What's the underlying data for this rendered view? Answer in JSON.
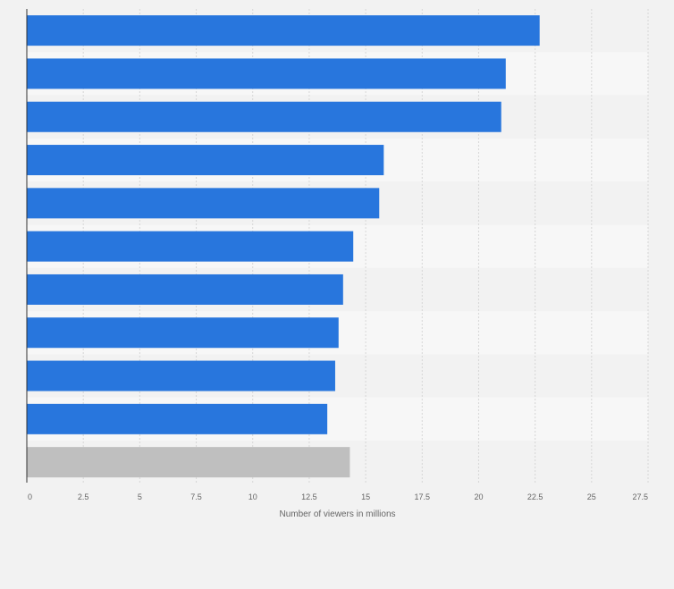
{
  "chart_data": {
    "type": "bar",
    "orientation": "horizontal",
    "title": "",
    "xlabel": "Number of viewers in millions",
    "ylabel": "",
    "xlim": [
      0,
      27.5
    ],
    "xticks": [
      "0",
      "2.5",
      "5",
      "7.5",
      "10",
      "12.5",
      "15",
      "17.5",
      "20",
      "22.5",
      "25",
      "27.5"
    ],
    "grid": true,
    "legend": "none",
    "categories": [
      "",
      "",
      "",
      "",
      "",
      "",
      "",
      "",
      "",
      "",
      ""
    ],
    "values": [
      22.7,
      21.2,
      21.0,
      15.8,
      15.6,
      14.45,
      14.0,
      13.8,
      13.65,
      13.3,
      14.3
    ],
    "bar_colors": [
      "#2876dd",
      "#2876dd",
      "#2876dd",
      "#2876dd",
      "#2876dd",
      "#2876dd",
      "#2876dd",
      "#2876dd",
      "#2876dd",
      "#2876dd",
      "#bfbfbf"
    ]
  },
  "colors": {
    "background": "#f2f2f2",
    "band_odd": "#f7f7f7",
    "grid": "#d6d6d6",
    "axis": "#333333"
  }
}
